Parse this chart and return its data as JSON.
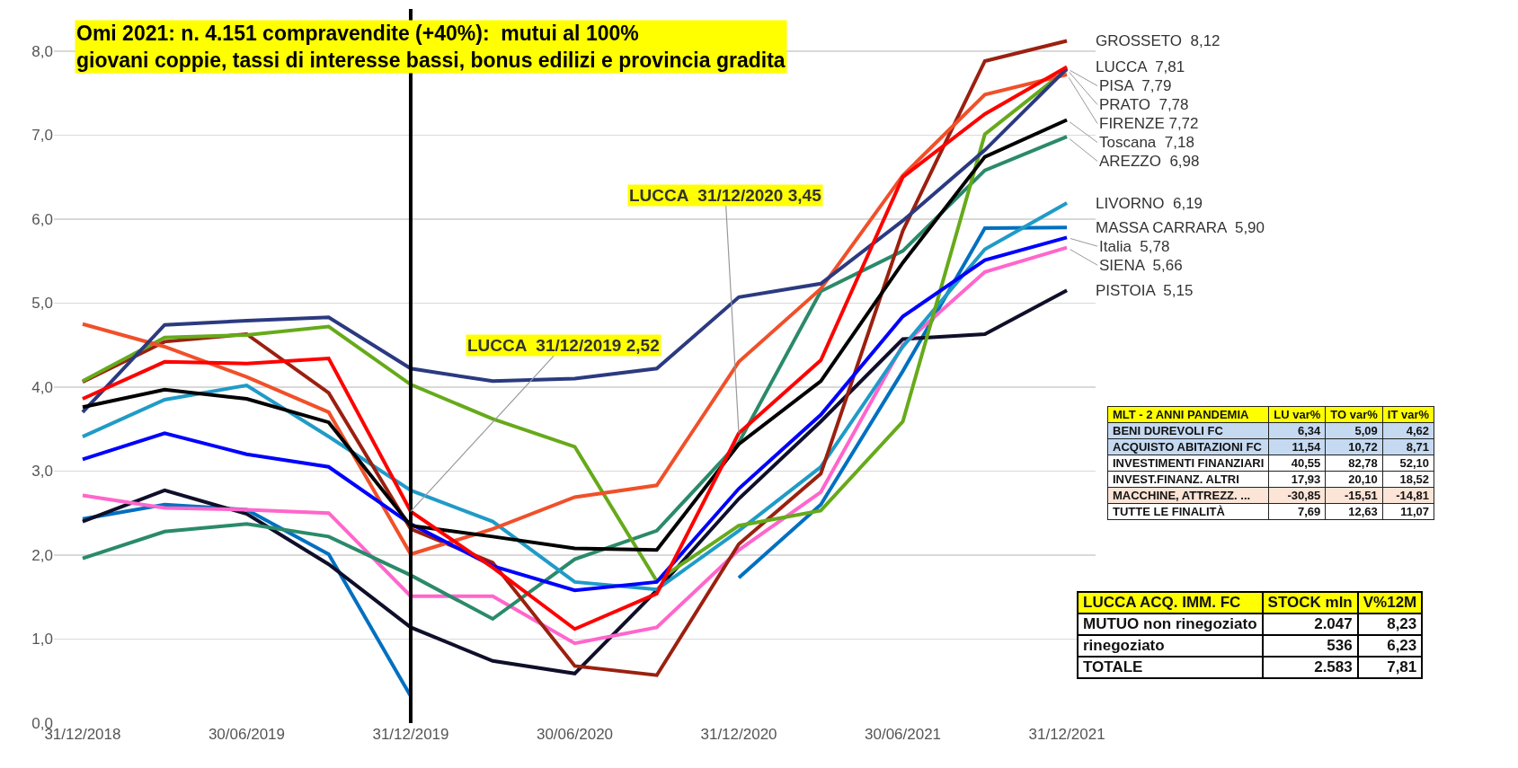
{
  "chart_data": [
    {
      "type": "line",
      "title": "Omi 2021: n. 4.151 compravendite (+40%):  mutui al 100%\ngiovani coppie, tassi di interesse bassi, bonus edilizi e provincia gradita",
      "categories": [
        "31/12/2018",
        null,
        "30/06/2019",
        null,
        "31/12/2019",
        null,
        "30/06/2020",
        null,
        "31/12/2020",
        null,
        "30/06/2021",
        null,
        "31/12/2021"
      ],
      "series": [
        {
          "color": "#0070c0",
          "values": [
            2.43,
            2.6,
            2.54,
            2.01,
            0.32,
            null,
            null,
            null,
            1.73,
            2.6,
            4.19,
            5.89,
            5.9
          ]
        },
        {
          "color": "#0f0f2a",
          "values": [
            2.4,
            2.77,
            2.49,
            1.89,
            1.14,
            0.74,
            0.59,
            1.58,
            2.67,
            3.59,
            4.57,
            4.63,
            5.15
          ]
        },
        {
          "color": "#ff66cc",
          "values": [
            2.71,
            2.56,
            2.54,
            2.5,
            1.51,
            1.51,
            0.95,
            1.14,
            2.06,
            2.75,
            4.5,
            5.37,
            5.66
          ]
        },
        {
          "color": "#2a8a6a",
          "values": [
            1.96,
            2.28,
            2.37,
            2.22,
            1.76,
            1.24,
            1.95,
            2.29,
            3.34,
            5.14,
            5.62,
            6.58,
            6.98
          ]
        },
        {
          "color": "#1f9bc7",
          "values": [
            3.41,
            3.85,
            4.02,
            3.41,
            2.77,
            2.4,
            1.68,
            1.59,
            2.29,
            3.05,
            4.48,
            5.64,
            6.19
          ]
        },
        {
          "color": "#9b2010",
          "values": [
            4.06,
            4.54,
            4.63,
            3.93,
            2.31,
            1.91,
            0.68,
            0.57,
            2.13,
            2.97,
            5.86,
            7.88,
            8.12
          ]
        },
        {
          "color": "#66aa1a",
          "values": [
            4.07,
            4.59,
            4.62,
            4.72,
            4.03,
            3.62,
            3.29,
            1.69,
            2.35,
            2.53,
            3.59,
            7.01,
            7.78
          ]
        },
        {
          "color": "#f0502a",
          "values": [
            4.75,
            4.48,
            4.12,
            3.7,
            2.01,
            2.31,
            2.69,
            2.83,
            4.3,
            5.17,
            6.52,
            7.48,
            7.72
          ]
        },
        {
          "color": "#2b3a80",
          "values": [
            3.7,
            4.74,
            4.79,
            4.83,
            4.22,
            4.07,
            4.1,
            4.22,
            5.07,
            5.23,
            5.98,
            6.82,
            7.79
          ]
        },
        {
          "color": "#0000ff",
          "values": [
            3.14,
            3.45,
            3.2,
            3.05,
            2.37,
            1.87,
            1.58,
            1.68,
            2.79,
            3.67,
            4.84,
            5.51,
            5.78
          ]
        },
        {
          "color": "#000000",
          "values": [
            3.76,
            3.97,
            3.86,
            3.58,
            2.35,
            2.22,
            2.08,
            2.06,
            3.32,
            4.07,
            5.48,
            6.74,
            7.18
          ]
        },
        {
          "color": "#ff0000",
          "values": [
            3.86,
            4.3,
            4.28,
            4.34,
            2.52,
            1.85,
            1.12,
            1.54,
            3.45,
            4.32,
            6.5,
            7.25,
            7.81
          ]
        }
      ],
      "ylim": [
        0,
        8.5
      ],
      "yticks": [
        {
          "value": 0,
          "label": "0,0"
        },
        {
          "value": 1,
          "label": "1,0"
        },
        {
          "value": 2,
          "label": "2,0"
        },
        {
          "value": 3,
          "label": "3,0"
        },
        {
          "value": 4,
          "label": "4,0"
        },
        {
          "value": 5,
          "label": "5,0"
        },
        {
          "value": 6,
          "label": "6,0"
        },
        {
          "value": 7,
          "label": "7,0"
        },
        {
          "value": 8,
          "label": "8,0"
        }
      ],
      "grid": "y",
      "marker": "none",
      "line_style": "solid",
      "ref_lines": [
        {
          "axis": "x",
          "value": "31/12/2019",
          "color": "#000000"
        }
      ],
      "annotations": [
        {
          "text": "LUCCA  31/12/2019 2,52",
          "x": "31/12/2019",
          "y": 2.52
        },
        {
          "text": "LUCCA  31/12/2020 3,45",
          "x": "31/12/2020",
          "y": 3.45
        },
        {
          "text": "GROSSETO  8,12",
          "x": "31/12/2021",
          "y": 8.12
        },
        {
          "text": "LUCCA  7,81",
          "x": "31/12/2021",
          "y": 7.81
        },
        {
          "text": "PISA  7,79",
          "x": "31/12/2021",
          "y": 7.79
        },
        {
          "text": "PRATO  7,78",
          "x": "31/12/2021",
          "y": 7.78
        },
        {
          "text": "FIRENZE 7,72",
          "x": "31/12/2021",
          "y": 7.72
        },
        {
          "text": "Toscana  7,18",
          "x": "31/12/2021",
          "y": 7.18
        },
        {
          "text": "AREZZO  6,98",
          "x": "31/12/2021",
          "y": 6.98
        },
        {
          "text": "LIVORNO  6,19",
          "x": "31/12/2021",
          "y": 6.19
        },
        {
          "text": "MASSA CARRARA  5,90",
          "x": "31/12/2021",
          "y": 5.9
        },
        {
          "text": "Italia  5,78",
          "x": "31/12/2021",
          "y": 5.78
        },
        {
          "text": "SIENA  5,66",
          "x": "31/12/2021",
          "y": 5.66
        },
        {
          "text": "PISTOIA  5,15",
          "x": "31/12/2021",
          "y": 5.15
        }
      ]
    },
    {
      "type": "other",
      "title": "MLT - 2 ANNI PANDEMIA",
      "categories": [
        "LU var%",
        "TO var%",
        "IT var%"
      ],
      "y_categories": [
        "BENI DUREVOLI FC",
        "ACQUISTO ABITAZIONI FC",
        "INVESTIMENTI FINANZIARI",
        "INVEST.FINANZ. ALTRI",
        "MACCHINE, ATTREZZ. ...",
        "TUTTE LE FINALITÀ"
      ],
      "annotations": [
        "6,34",
        "5,09",
        "4,62",
        "11,54",
        "10,72",
        "8,71",
        "40,55",
        "82,78",
        "52,10",
        "17,93",
        "20,10",
        "18,52",
        "-30,85",
        "-15,51",
        "-14,81",
        "7,69",
        "12,63",
        "11,07"
      ],
      "colors": [
        "#c5d9f1",
        "#c5d9f1",
        "#ffffff",
        "#ffffff",
        "#fce4d6",
        "#ffffff"
      ]
    },
    {
      "type": "other",
      "title": "LUCCA ACQ. IMM. FC",
      "categories": [
        "STOCK mln",
        "V%12M"
      ],
      "y_categories": [
        "MUTUO non rinegoziato",
        "rinegoziato",
        "TOTALE"
      ],
      "annotations": [
        "2.047",
        "8,23",
        "536",
        "6,23",
        "2.583",
        "7,81"
      ]
    }
  ]
}
